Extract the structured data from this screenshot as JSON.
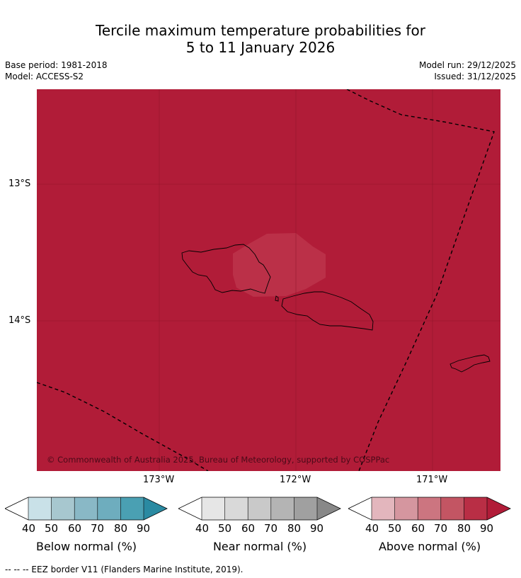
{
  "header": {
    "title_line1": "Tercile maximum temperature probabilities for",
    "title_line2": "5 to 11 January 2026",
    "base_period": "Base period: 1981-2018",
    "model": "Model: ACCESS-S2",
    "model_run": "Model run: 29/12/2025",
    "issued": "Issued: 31/12/2025"
  },
  "map": {
    "fill_color": "#b11c38",
    "highlight_color": "#bb3048",
    "copyright": "© Commonwealth of Australia 2025, Bureau of Meteorology, supported by COSPPac",
    "lat_labels": [
      "13°S",
      "14°S"
    ],
    "lon_labels": [
      "173°W",
      "172°W",
      "171°W"
    ]
  },
  "colorbars": [
    {
      "label": "Below normal (%)",
      "ticks": [
        "40",
        "50",
        "60",
        "70",
        "80",
        "90"
      ],
      "colors": [
        "#ffffff",
        "#c9e1e8",
        "#a7c7cf",
        "#89b8c6",
        "#6eadbe",
        "#4aa0b3",
        "#2a8aa2"
      ]
    },
    {
      "label": "Near normal (%)",
      "ticks": [
        "40",
        "50",
        "60",
        "70",
        "80",
        "90"
      ],
      "colors": [
        "#ffffff",
        "#e6e6e6",
        "#d9d9d9",
        "#c9c9c9",
        "#b4b4b4",
        "#a0a0a0",
        "#888888"
      ]
    },
    {
      "label": "Above normal (%)",
      "ticks": [
        "40",
        "50",
        "60",
        "70",
        "80",
        "90"
      ],
      "colors": [
        "#ffffff",
        "#e3b6bd",
        "#d5969f",
        "#cc7580",
        "#c35563",
        "#b92e45",
        "#b11c38"
      ]
    }
  ],
  "footer": {
    "eez_note": "--  --  -- EEZ border V11 (Flanders Marine Institute, 2019)."
  }
}
